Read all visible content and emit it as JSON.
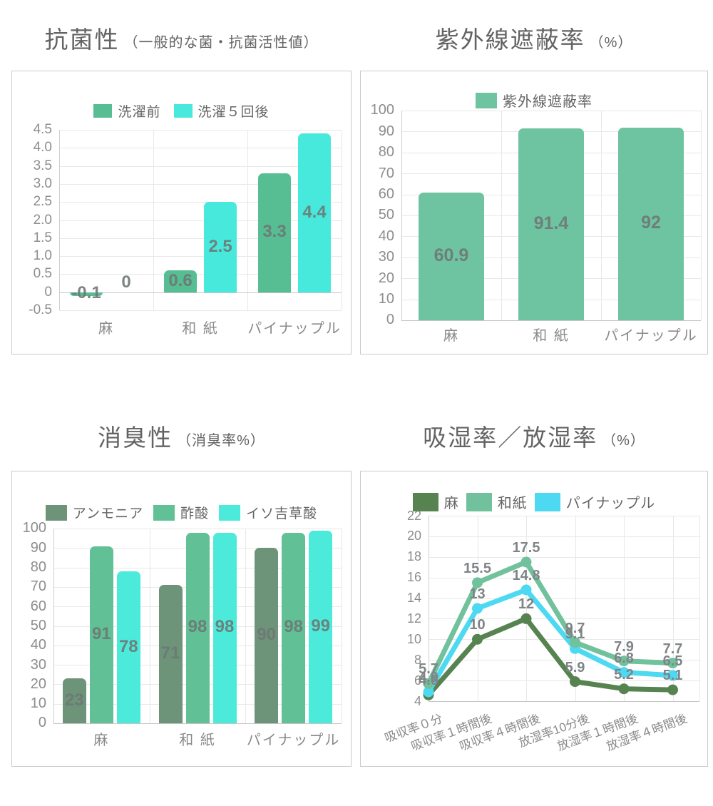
{
  "chart_data": [
    {
      "id": "antibacterial",
      "type": "bar",
      "title": "抗菌性",
      "subtitle": "（一般的な菌・抗菌活性値）",
      "categories": [
        "麻",
        "和 紙",
        "パイナップル"
      ],
      "series": [
        {
          "name": "洗濯前",
          "color": "#57bd93",
          "values": [
            -0.1,
            0.6,
            3.3
          ],
          "labels": [
            "-0.1",
            "0.6",
            "3.3"
          ]
        },
        {
          "name": "洗濯５回後",
          "color": "#47e9dc",
          "values": [
            0,
            2.5,
            4.4
          ],
          "labels": [
            "0",
            "2.5",
            "4.4"
          ]
        }
      ],
      "ylim": [
        -0.5,
        4.5
      ],
      "yticks": [
        "4.5",
        "4.0",
        "3.5",
        "3.0",
        "2.5",
        "2.0",
        "1.5",
        "1.0",
        "0.5",
        "0",
        "-0.5"
      ],
      "ytick_values": [
        4.5,
        4.0,
        3.5,
        3.0,
        2.5,
        2.0,
        1.5,
        1.0,
        0.5,
        0,
        -0.5
      ],
      "legend_position": "top",
      "grid": true
    },
    {
      "id": "uv-shielding",
      "type": "bar",
      "title": "紫外線遮蔽率",
      "subtitle": "（%）",
      "categories": [
        "麻",
        "和 紙",
        "パイナップル"
      ],
      "series": [
        {
          "name": "紫外線遮蔽率",
          "color": "#6ec3a1",
          "values": [
            60.9,
            91.4,
            92
          ],
          "labels": [
            "60.9",
            "91.4",
            "92"
          ]
        }
      ],
      "ylim": [
        0,
        100
      ],
      "yticks": [
        "100",
        "90",
        "80",
        "70",
        "60",
        "50",
        "40",
        "30",
        "20",
        "10",
        "0"
      ],
      "ytick_values": [
        100,
        90,
        80,
        70,
        60,
        50,
        40,
        30,
        20,
        10,
        0
      ],
      "legend_position": "top",
      "grid": true
    },
    {
      "id": "deodorization",
      "type": "bar",
      "title": "消臭性",
      "subtitle": "（消臭率%）",
      "categories": [
        "麻",
        "和 紙",
        "パイナップル"
      ],
      "series": [
        {
          "name": "アンモニア",
          "color": "#6d9479",
          "values": [
            23,
            71,
            90
          ],
          "labels": [
            "23",
            "71",
            "90"
          ]
        },
        {
          "name": "酢酸",
          "color": "#61c095",
          "values": [
            91,
            98,
            98
          ],
          "labels": [
            "91",
            "98",
            "98"
          ]
        },
        {
          "name": "イソ吉草酸",
          "color": "#4ceada",
          "values": [
            78,
            98,
            99
          ],
          "labels": [
            "78",
            "98",
            "99"
          ]
        }
      ],
      "ylim": [
        0,
        100
      ],
      "yticks": [
        "100",
        "90",
        "80",
        "70",
        "60",
        "50",
        "40",
        "30",
        "20",
        "10",
        "0"
      ],
      "ytick_values": [
        100,
        90,
        80,
        70,
        60,
        50,
        40,
        30,
        20,
        10,
        0
      ],
      "legend_position": "top",
      "grid": true
    },
    {
      "id": "moisture-absorption-release",
      "type": "line",
      "title": "吸湿率／放湿率",
      "subtitle": "（%）",
      "categories": [
        "吸収率０分",
        "吸収率１時間後",
        "吸収率４時間後",
        "放湿率10分後",
        "放湿率１時間後",
        "放湿率４時間後"
      ],
      "series": [
        {
          "name": "麻",
          "color": "#578351",
          "values": [
            4.6,
            10,
            12,
            5.9,
            5.2,
            5.1
          ],
          "labels": [
            "4.6",
            "10",
            "12",
            "5.9",
            "5.2",
            "5.1"
          ]
        },
        {
          "name": "和紙",
          "color": "#70c19c",
          "values": [
            5.7,
            15.5,
            17.5,
            9.7,
            7.9,
            7.7
          ],
          "labels": [
            "5.7",
            "15.5",
            "17.5",
            "9.7",
            "7.9",
            "7.7"
          ]
        },
        {
          "name": "パイナップル",
          "color": "#4dd9f2",
          "values": [
            4.9,
            13,
            14.8,
            9.1,
            6.8,
            6.5
          ],
          "labels": [
            "4.9",
            "13",
            "14.8",
            "9.1",
            "6.8",
            "6.5"
          ]
        }
      ],
      "ylim": [
        4,
        22
      ],
      "yticks": [
        "22",
        "20",
        "18",
        "16",
        "14",
        "12",
        "10",
        "8",
        "6",
        "4"
      ],
      "ytick_values": [
        22,
        20,
        18,
        16,
        14,
        12,
        10,
        8,
        6,
        4
      ],
      "legend_position": "top",
      "grid": true
    }
  ]
}
